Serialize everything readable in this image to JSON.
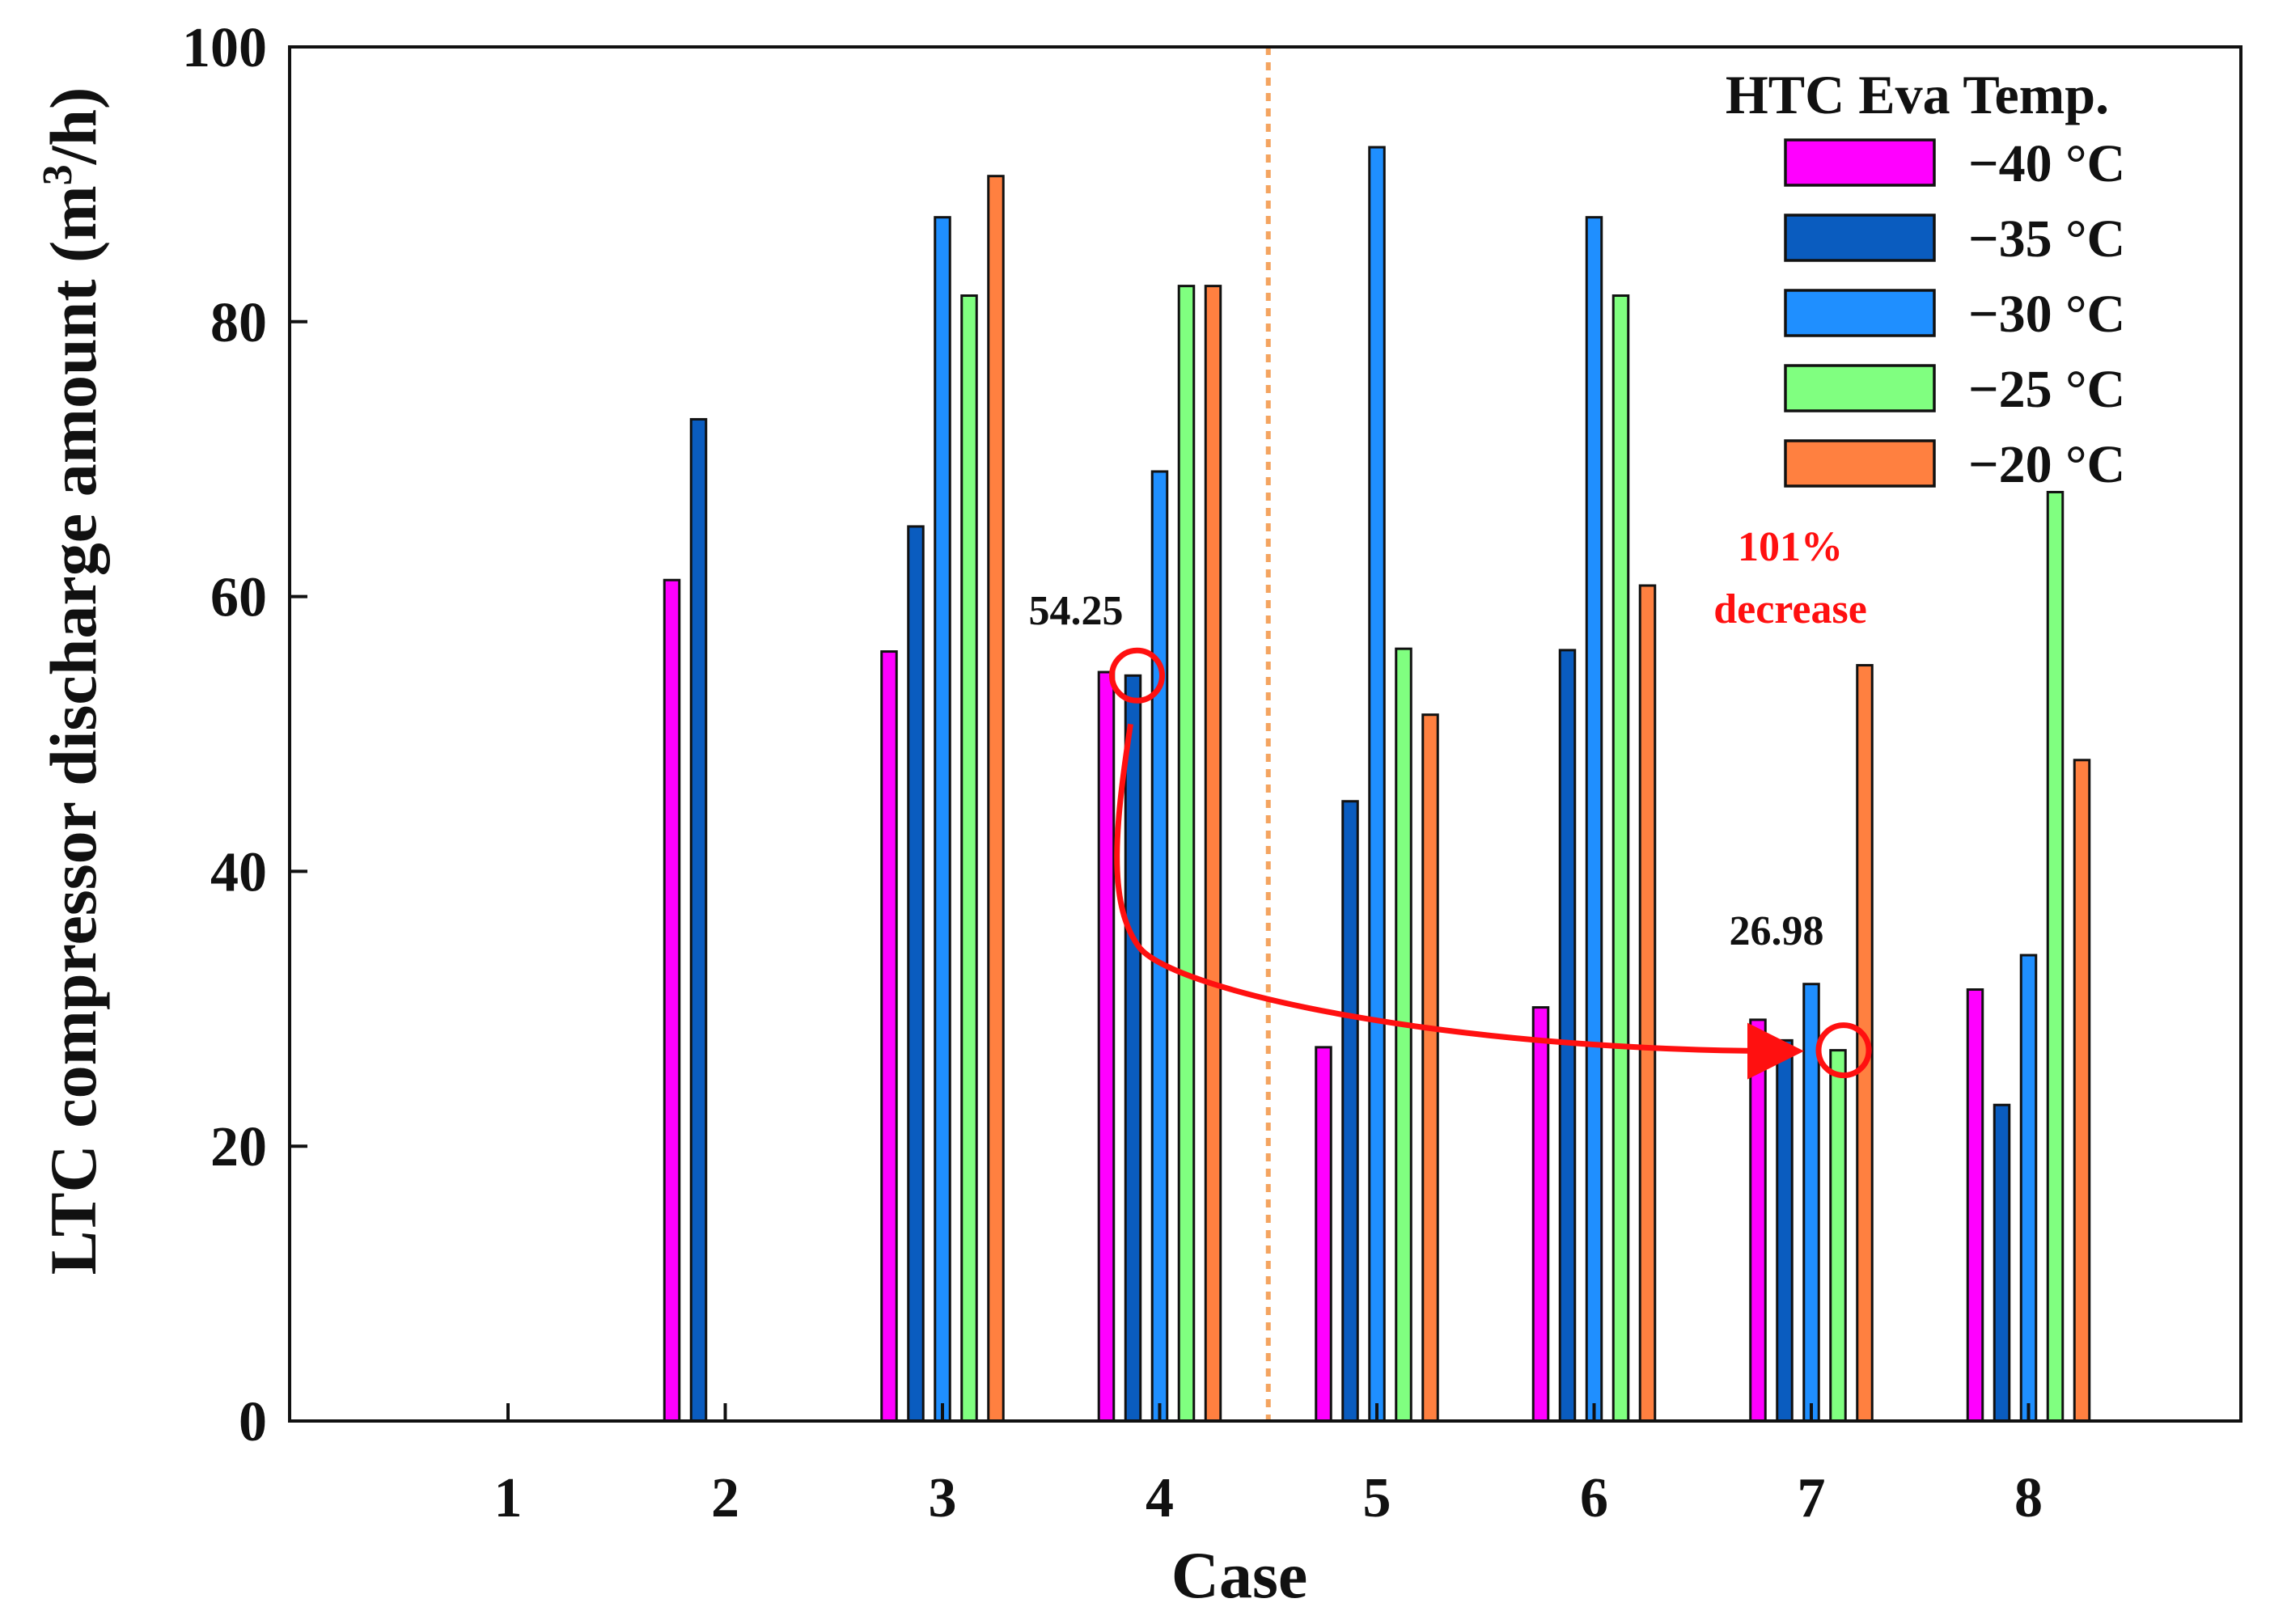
{
  "chart_data": {
    "type": "bar",
    "title": "",
    "xlabel": "Case",
    "ylabel": "LTC compressor discharge amount (m",
    "ylabel_sup": "3",
    "ylabel_tail": "/h)",
    "ylim": [
      0,
      100
    ],
    "yticks": [
      0,
      20,
      40,
      60,
      80,
      100
    ],
    "grid": false,
    "categories": [
      "1",
      "2",
      "3",
      "4",
      "5",
      "6",
      "7",
      "8"
    ],
    "legend": {
      "title": "HTC Eva Temp.",
      "position": "top-right"
    },
    "series": [
      {
        "name": "−40 °C",
        "color": "#ff00ff",
        "values": [
          null,
          61.2,
          56.0,
          54.5,
          27.2,
          30.1,
          29.2,
          31.4
        ]
      },
      {
        "name": "−35 °C",
        "color": "#0a5cbf",
        "values": [
          null,
          72.9,
          65.1,
          54.25,
          45.1,
          56.1,
          27.7,
          23.0
        ]
      },
      {
        "name": "−30 °C",
        "color": "#1f8fff",
        "values": [
          null,
          null,
          87.6,
          69.1,
          92.7,
          87.6,
          31.8,
          33.9
        ]
      },
      {
        "name": "−25 °C",
        "color": "#80ff80",
        "values": [
          null,
          null,
          81.9,
          82.6,
          56.2,
          81.9,
          26.98,
          67.6
        ]
      },
      {
        "name": "−20 °C",
        "color": "#ff8040",
        "values": [
          null,
          null,
          90.6,
          82.6,
          51.4,
          60.8,
          55.0,
          48.1
        ]
      }
    ],
    "annotations": {
      "start_value": "54.25",
      "end_value": "26.98",
      "change_line1": "101%",
      "change_line2": "decrease",
      "change_color": "#ff1010",
      "divider_between": [
        "4",
        "5"
      ],
      "divider_color": "#f4a460"
    }
  }
}
